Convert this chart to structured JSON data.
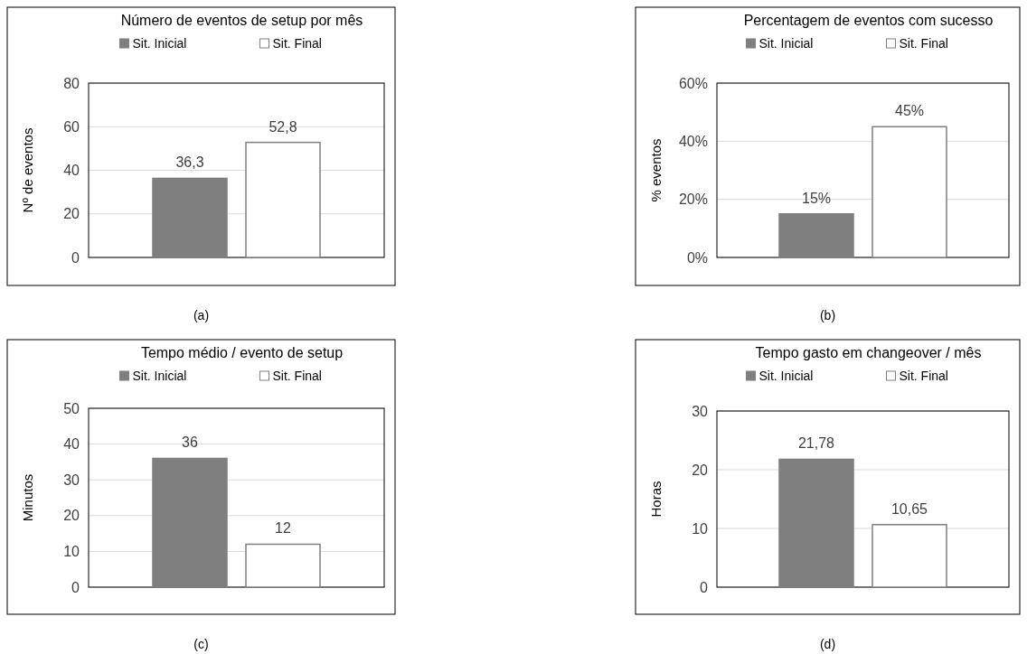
{
  "chart_data": [
    {
      "type": "bar",
      "title": "Número de eventos de setup por mês",
      "ylabel": "Nº de eventos",
      "categories": [
        null
      ],
      "series": [
        {
          "name": "Sit. Inicial",
          "color": "#7f7f7f",
          "values": [
            36.3
          ],
          "value_labels": [
            "36,3"
          ]
        },
        {
          "name": "Sit. Final",
          "color": "#ffffff",
          "values": [
            52.8
          ],
          "value_labels": [
            "52,8"
          ]
        }
      ],
      "ylim": [
        0,
        80
      ],
      "yticks": [
        0,
        20,
        40,
        60,
        80
      ],
      "grid": "y",
      "legend": "top",
      "annotations": [
        "(a)"
      ]
    },
    {
      "type": "bar",
      "title": "Percentagem de eventos com sucesso",
      "ylabel": "% eventos",
      "categories": [
        null
      ],
      "series": [
        {
          "name": "Sit. Inicial",
          "color": "#7f7f7f",
          "values": [
            15
          ],
          "value_labels": [
            "15%"
          ]
        },
        {
          "name": "Sit. Final",
          "color": "#ffffff",
          "values": [
            45
          ],
          "value_labels": [
            "45%"
          ]
        }
      ],
      "ylim": [
        0,
        60
      ],
      "yticks": [
        {
          "value": 0,
          "label": "0%"
        },
        {
          "value": 20,
          "label": "20%"
        },
        {
          "value": 40,
          "label": "40%"
        },
        {
          "value": 60,
          "label": "60%"
        }
      ],
      "grid": "y",
      "legend": "top",
      "annotations": [
        "(b)"
      ]
    },
    {
      "type": "bar",
      "title": "Tempo médio / evento de setup",
      "ylabel": "Minutos",
      "categories": [
        null
      ],
      "series": [
        {
          "name": "Sit. Inicial",
          "color": "#7f7f7f",
          "values": [
            36
          ],
          "value_labels": [
            "36"
          ]
        },
        {
          "name": "Sit. Final",
          "color": "#ffffff",
          "values": [
            12
          ],
          "value_labels": [
            "12"
          ]
        }
      ],
      "ylim": [
        0,
        50
      ],
      "yticks": [
        0,
        10,
        20,
        30,
        40,
        50
      ],
      "grid": "y",
      "legend": "top",
      "annotations": [
        "(c)"
      ]
    },
    {
      "type": "bar",
      "title": "Tempo gasto em changeover / mês",
      "ylabel": "Horas",
      "categories": [
        null
      ],
      "series": [
        {
          "name": "Sit. Inicial",
          "color": "#7f7f7f",
          "values": [
            21.78
          ],
          "value_labels": [
            "21,78"
          ]
        },
        {
          "name": "Sit. Final",
          "color": "#ffffff",
          "values": [
            10.65
          ],
          "value_labels": [
            "10,65"
          ]
        }
      ],
      "ylim": [
        0,
        30
      ],
      "yticks": [
        0,
        10,
        20,
        30
      ],
      "grid": "y",
      "legend": "top",
      "annotations": [
        "(d)"
      ]
    }
  ]
}
